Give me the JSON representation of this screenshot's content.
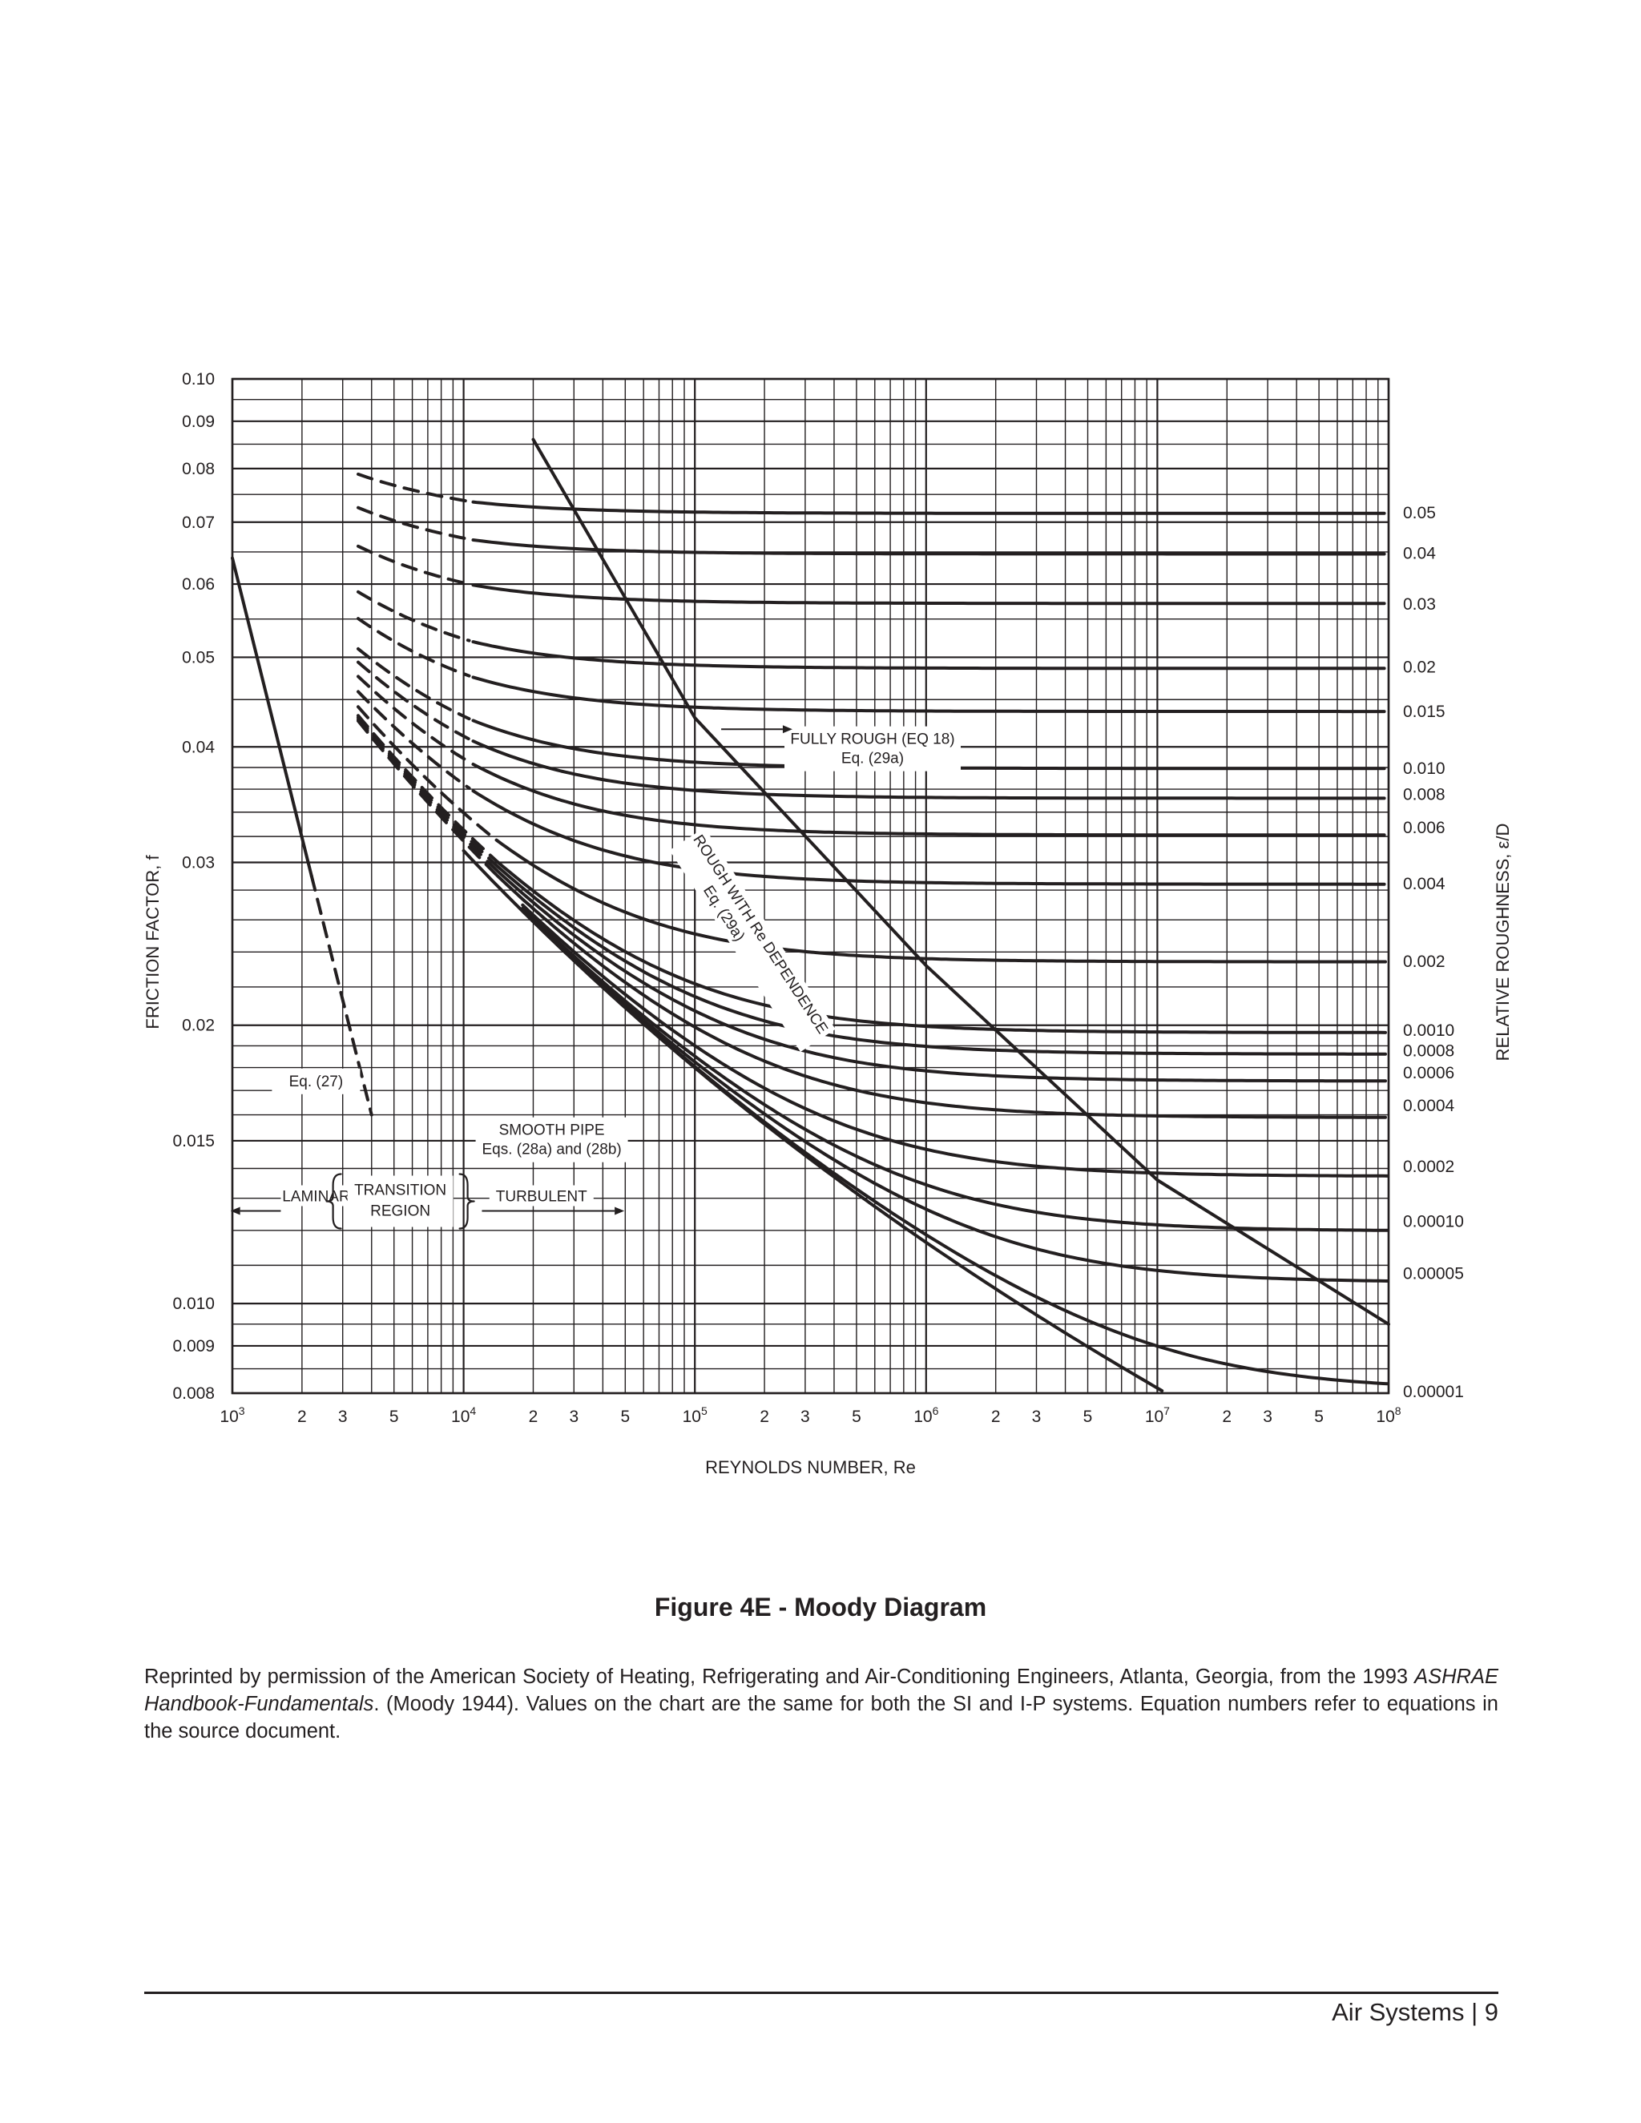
{
  "chart_data": {
    "type": "line",
    "title": "",
    "xlabel": "REYNOLDS NUMBER, Re",
    "ylabel": "FRICTION FACTOR, f",
    "y2label": "RELATIVE ROUGHNESS, ε/D",
    "x_scale": "log",
    "y_scale": "log",
    "xlim": [
      1000,
      100000000
    ],
    "ylim": [
      0.008,
      0.1
    ],
    "grid": true,
    "x_ticks": [
      {
        "value": 1000,
        "base": "10",
        "exp": "3"
      },
      {
        "value": 2000,
        "label": "2"
      },
      {
        "value": 3000,
        "label": "3"
      },
      {
        "value": 5000,
        "label": "5"
      },
      {
        "value": 10000,
        "base": "10",
        "exp": "4"
      },
      {
        "value": 20000,
        "label": "2"
      },
      {
        "value": 30000,
        "label": "3"
      },
      {
        "value": 50000,
        "label": "5"
      },
      {
        "value": 100000,
        "base": "10",
        "exp": "5"
      },
      {
        "value": 200000,
        "label": "2"
      },
      {
        "value": 300000,
        "label": "3"
      },
      {
        "value": 500000,
        "label": "5"
      },
      {
        "value": 1000000,
        "base": "10",
        "exp": "6"
      },
      {
        "value": 2000000,
        "label": "2"
      },
      {
        "value": 3000000,
        "label": "3"
      },
      {
        "value": 5000000,
        "label": "5"
      },
      {
        "value": 10000000,
        "base": "10",
        "exp": "7"
      },
      {
        "value": 20000000,
        "label": "2"
      },
      {
        "value": 30000000,
        "label": "3"
      },
      {
        "value": 50000000,
        "label": "5"
      },
      {
        "value": 100000000,
        "base": "10",
        "exp": "8"
      }
    ],
    "y_ticks": [
      {
        "value": 0.1,
        "label": "0.10"
      },
      {
        "value": 0.09,
        "label": "0.09"
      },
      {
        "value": 0.08,
        "label": "0.08"
      },
      {
        "value": 0.07,
        "label": "0.07"
      },
      {
        "value": 0.06,
        "label": "0.06"
      },
      {
        "value": 0.05,
        "label": "0.05"
      },
      {
        "value": 0.04,
        "label": "0.04"
      },
      {
        "value": 0.03,
        "label": "0.03"
      },
      {
        "value": 0.02,
        "label": "0.02"
      },
      {
        "value": 0.015,
        "label": "0.015"
      },
      {
        "value": 0.01,
        "label": "0.010"
      },
      {
        "value": 0.009,
        "label": "0.009"
      },
      {
        "value": 0.008,
        "label": "0.008"
      }
    ],
    "roughness_labels": [
      {
        "label": "0.05",
        "f": 0.0718
      },
      {
        "label": "0.04",
        "f": 0.0649
      },
      {
        "label": "0.03",
        "f": 0.0572
      },
      {
        "label": "0.02",
        "f": 0.0489
      },
      {
        "label": "0.015",
        "f": 0.0438
      },
      {
        "label": "0.010",
        "f": 0.038
      },
      {
        "label": "0.008",
        "f": 0.0356
      },
      {
        "label": "0.006",
        "f": 0.0328
      },
      {
        "label": "0.004",
        "f": 0.0285
      },
      {
        "label": "0.002",
        "f": 0.0235
      },
      {
        "label": "0.0010",
        "f": 0.0198
      },
      {
        "label": "0.0008",
        "f": 0.0188
      },
      {
        "label": "0.0006",
        "f": 0.0178
      },
      {
        "label": "0.0004",
        "f": 0.0164
      },
      {
        "label": "0.0002",
        "f": 0.0141
      },
      {
        "label": "0.00010",
        "f": 0.0123
      },
      {
        "label": "0.00005",
        "f": 0.0108
      },
      {
        "label": "0.00001",
        "f": 0.00805
      }
    ],
    "laminar_curve": {
      "x": [
        1000,
        2200,
        4000
      ],
      "y": [
        0.064,
        0.029,
        0.016
      ]
    },
    "fully_rough_boundary": {
      "x": [
        20000,
        100000,
        1000000,
        10000000,
        100000000
      ],
      "y": [
        0.086,
        0.043,
        0.0232,
        0.0136,
        0.0095
      ]
    },
    "annotations": {
      "eq27": "Eq. (27)",
      "smooth_pipe_1": "SMOOTH PIPE",
      "smooth_pipe_2": "Eqs. (28a) and (28b)",
      "fully_rough_1": "FULLY ROUGH (EQ 18)",
      "fully_rough_2": "Eq. (29a)",
      "rough_re_1": "ROUGH WITH Re DEPENDENCE",
      "rough_re_2": "Eq. (29a)",
      "laminar": "LAMINAR",
      "transition_1": "TRANSITION",
      "transition_2": "REGION",
      "turbulent": "TURBULENT"
    }
  },
  "figure_title": "Figure 4E - Moody Diagram",
  "caption": {
    "part1": "Reprinted by permission of the American Society of Heating, Refrigerating and Air-Conditioning Engineers, Atlanta, Georgia, from the 1993 ",
    "italic": "ASHRAE Handbook-Fundamentals",
    "part2": ". (Moody 1944). Values on the chart are the same for both the SI and I-P systems. Equation numbers refer to equations in the source document."
  },
  "footer": "Air Systems | 9",
  "colors": {
    "ink": "#231f20",
    "background": "#ffffff"
  }
}
